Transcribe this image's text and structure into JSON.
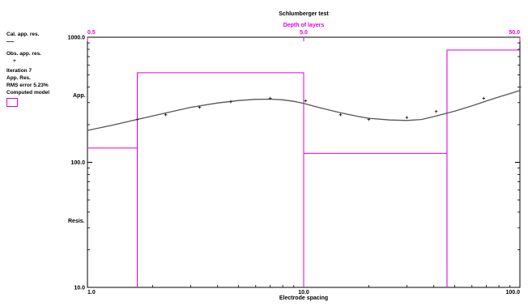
{
  "sidebar": {
    "cal_label": "Cal. app. res.",
    "obs_label": "Obs. app. res.",
    "obs_marker": "+",
    "iteration": "Iteration 7",
    "app_res": "App. Res.",
    "rms": "RMS error 5.23%",
    "computed_model": "Computed model"
  },
  "chart_data": {
    "type": "line",
    "title": "Schlumberger test",
    "xlabel": "Electrode spacing",
    "ylabel_top": "App.",
    "ylabel_bottom": "Resis.",
    "x_scale": "log",
    "y_scale": "log",
    "xlim": [
      1,
      100
    ],
    "ylim": [
      10,
      1000
    ],
    "x_ticks": [
      "1.0",
      "10.0",
      "100.0"
    ],
    "y_ticks": [
      "10.0",
      "100.0",
      "1000.0"
    ],
    "top_axis": {
      "label": "Depth of layers",
      "ticks": [
        "0.5",
        "5.0",
        "50.0"
      ],
      "lim": [
        0.5,
        50
      ]
    },
    "colors": {
      "calculated": "#555555",
      "observed": "#222222",
      "model": "#e000e0",
      "top_axis": "#e000e0"
    },
    "calculated": {
      "name": "Cal. app. res.",
      "x": [
        1.0,
        1.3,
        1.6,
        2.0,
        2.5,
        3.0,
        4.0,
        5.0,
        6.0,
        7.0,
        8.0,
        9.0,
        10.0,
        11.0,
        12.0,
        14.0,
        16.0,
        18.0,
        20.0,
        25.0,
        30.0,
        35.0,
        40.0,
        50.0,
        60.0,
        70.0,
        80.0,
        100.0
      ],
      "y": [
        180,
        198,
        215,
        235,
        256,
        275,
        298,
        312,
        319,
        320,
        316,
        307,
        296,
        283,
        272,
        255,
        242,
        232,
        225,
        218,
        216,
        220,
        232,
        257,
        283,
        309,
        333,
        375
      ]
    },
    "observed": {
      "name": "Obs. app. res.",
      "x": [
        1.7,
        2.3,
        3.3,
        4.6,
        7.0,
        10.2,
        14.8,
        20.0,
        30.0,
        41.0,
        68.0,
        100.0
      ],
      "y": [
        220,
        240,
        275,
        305,
        325,
        310,
        240,
        220,
        228,
        255,
        325,
        400
      ]
    },
    "model": {
      "name": "Computed model",
      "depth": [
        0.5,
        0.85,
        5.0,
        23.0,
        50.0
      ],
      "resistivity": [
        130,
        520,
        118,
        790
      ]
    }
  }
}
